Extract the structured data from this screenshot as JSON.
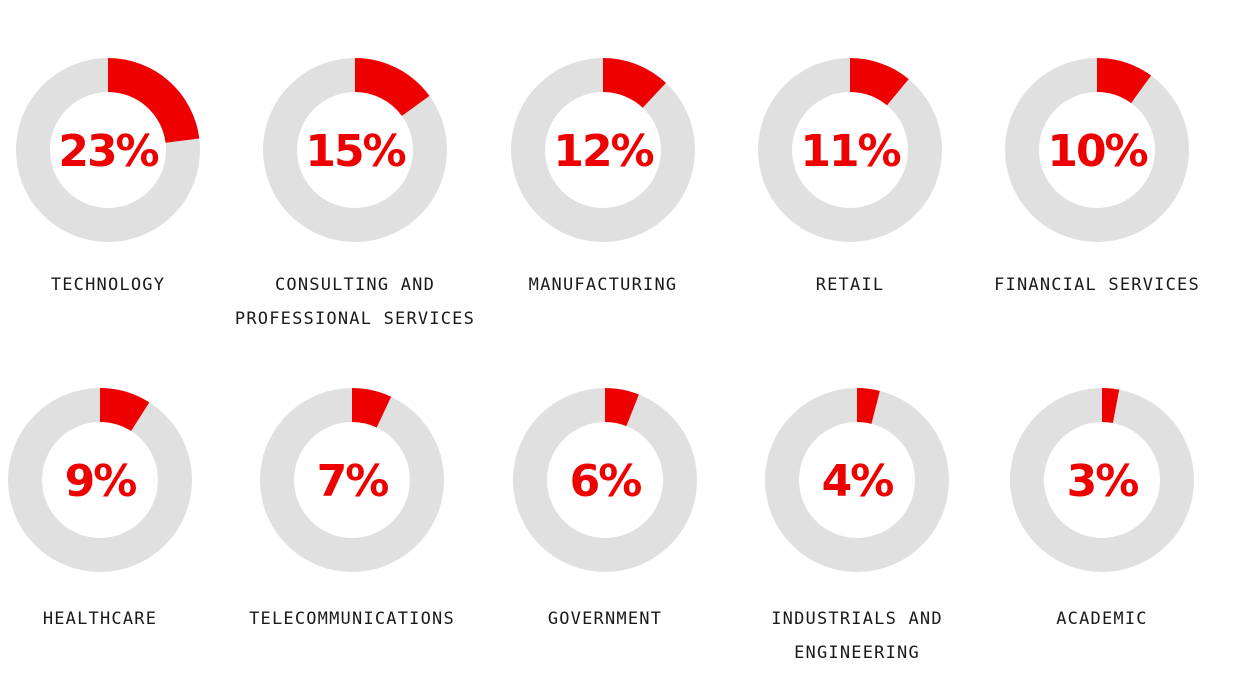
{
  "chart_data": {
    "type": "pie",
    "style": "donut-grid",
    "colors": {
      "filled": "#ee0000",
      "track": "#e0e0e0",
      "percent_text": "#ee0000",
      "label_text": "#1a1a1a"
    },
    "items": [
      {
        "label": [
          "TECHNOLOGY"
        ],
        "value": 23,
        "display": "23%"
      },
      {
        "label": [
          "CONSULTING AND",
          "PROFESSIONAL SERVICES"
        ],
        "value": 15,
        "display": "15%"
      },
      {
        "label": [
          "MANUFACTURING"
        ],
        "value": 12,
        "display": "12%"
      },
      {
        "label": [
          "RETAIL"
        ],
        "value": 11,
        "display": "11%"
      },
      {
        "label": [
          "FINANCIAL SERVICES"
        ],
        "value": 10,
        "display": "10%"
      },
      {
        "label": [
          "HEALTHCARE"
        ],
        "value": 9,
        "display": "9%"
      },
      {
        "label": [
          "TELECOMMUNICATIONS"
        ],
        "value": 7,
        "display": "7%"
      },
      {
        "label": [
          "GOVERNMENT"
        ],
        "value": 6,
        "display": "6%"
      },
      {
        "label": [
          "INDUSTRIALS AND",
          "ENGINEERING"
        ],
        "value": 4,
        "display": "4%"
      },
      {
        "label": [
          "ACADEMIC"
        ],
        "value": 3,
        "display": "3%"
      }
    ]
  }
}
